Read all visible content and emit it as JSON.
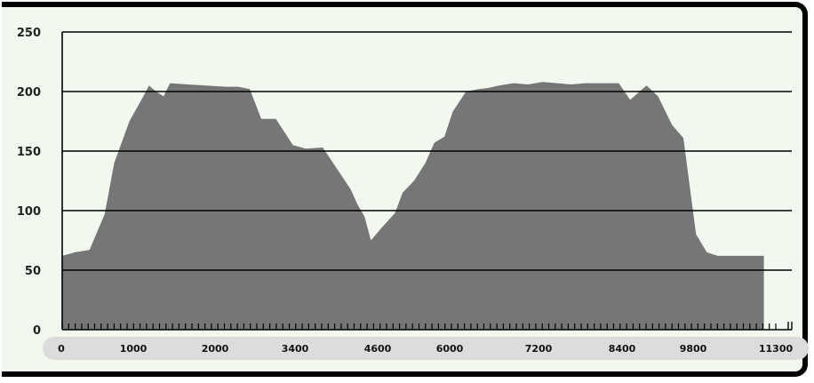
{
  "chart_data": {
    "type": "area",
    "title": "",
    "xlabel": "",
    "ylabel": "",
    "ylim": [
      0,
      250
    ],
    "xlim": [
      0,
      11300
    ],
    "yticks": [
      0,
      50,
      100,
      150,
      200,
      250
    ],
    "xtick_labels": [
      "0",
      "1000",
      "2000",
      "3400",
      "4600",
      "6000",
      "7200",
      "8400",
      "9800",
      "11300"
    ],
    "grid": true,
    "fill_color": "#767676",
    "background_color": "#f2f8ef",
    "series": [
      {
        "x": [
          0,
          200,
          430,
          670,
          820,
          1060,
          1270,
          1370,
          1480,
          1600,
          1700,
          1980,
          2270,
          2600,
          2780,
          2960,
          3140,
          3370,
          3640,
          3840,
          4110,
          4400,
          4550,
          4660,
          4770,
          4870,
          5030,
          5250,
          5370,
          5550,
          5730,
          5870,
          6030,
          6160,
          6370,
          6570,
          6720,
          6890,
          7120,
          7350,
          7580,
          7800,
          8030,
          8250,
          8570,
          8780,
          8960,
          9220,
          9400,
          9620,
          9800,
          10000,
          10170,
          10340,
          10470,
          10660,
          10880,
          11070
        ],
        "y": [
          62,
          65,
          67,
          97,
          140,
          175,
          195,
          205,
          200,
          196,
          207,
          206,
          205,
          204,
          204,
          202,
          177,
          177,
          155,
          152,
          153,
          130,
          118,
          105,
          95,
          75,
          85,
          98,
          115,
          125,
          140,
          157,
          162,
          183,
          200,
          202,
          203,
          205,
          207,
          206,
          208,
          207,
          206,
          207,
          207,
          207,
          193,
          205,
          196,
          172,
          161,
          80,
          65,
          62,
          62,
          62,
          62,
          62
        ]
      }
    ]
  }
}
